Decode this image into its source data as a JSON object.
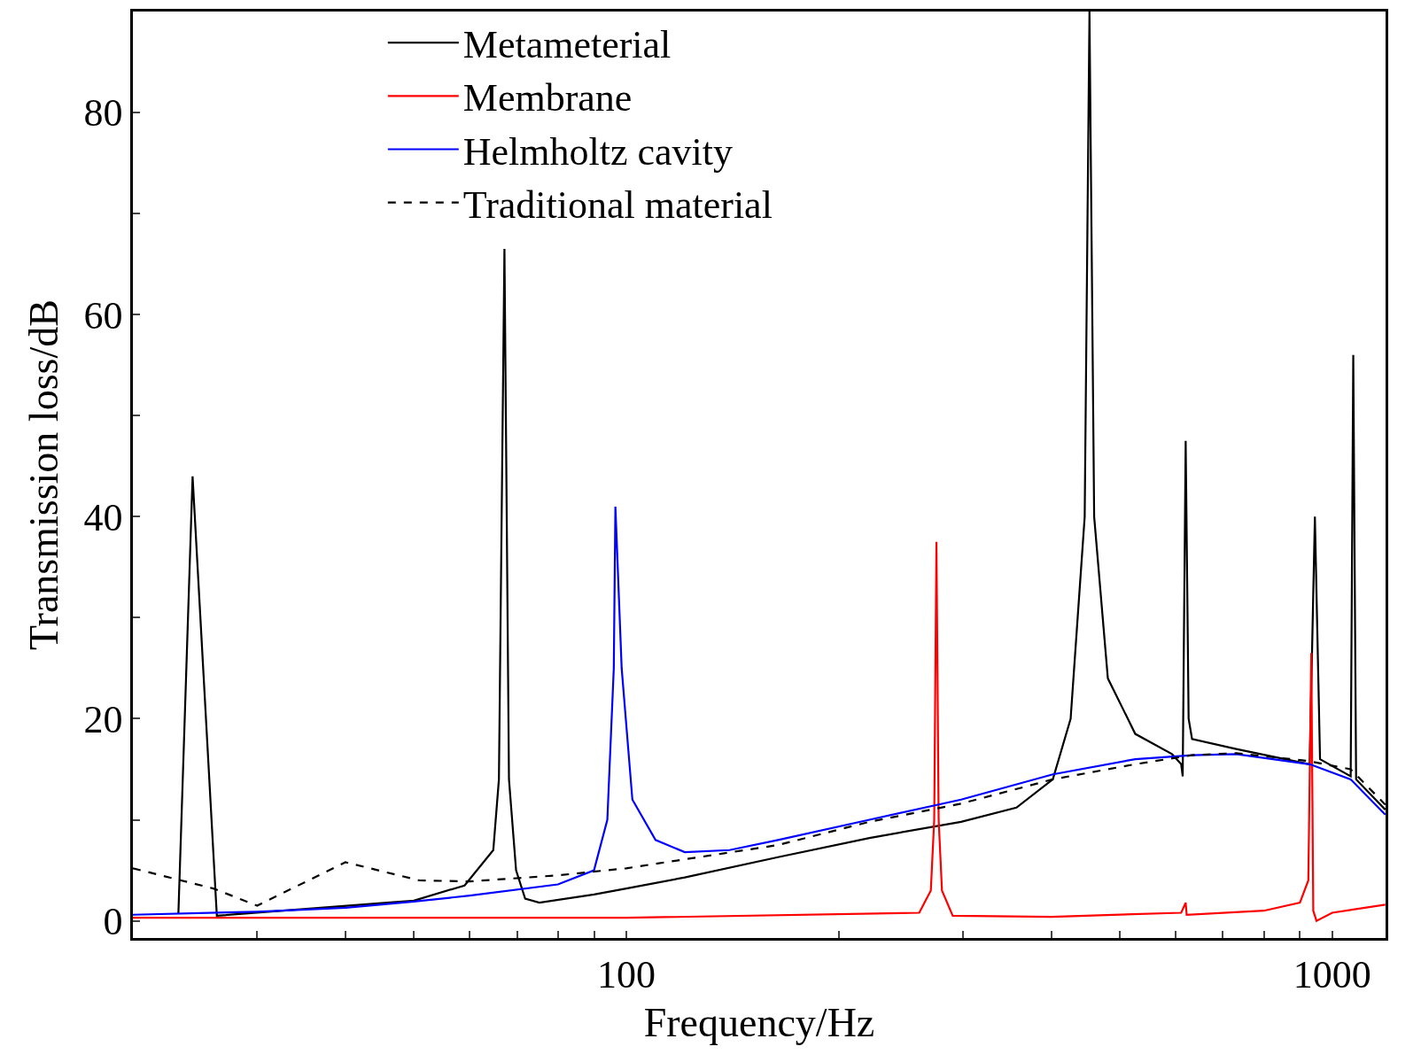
{
  "chart_data": {
    "type": "line",
    "xlabel": "Frequency/Hz",
    "ylabel": "Transmission loss/dB",
    "log": "x",
    "xlim": [
      20,
      1190
    ],
    "ylim": [
      -1.7,
      90
    ],
    "xticks": [
      {
        "value": 20,
        "label": null
      },
      {
        "value": 30,
        "label": null
      },
      {
        "value": 40,
        "label": null
      },
      {
        "value": 50,
        "label": null
      },
      {
        "value": 60,
        "label": null
      },
      {
        "value": 70,
        "label": null
      },
      {
        "value": 80,
        "label": null
      },
      {
        "value": 90,
        "label": null
      },
      100,
      {
        "value": 200,
        "label": null
      },
      {
        "value": 300,
        "label": null
      },
      {
        "value": 400,
        "label": null
      },
      {
        "value": 500,
        "label": null
      },
      {
        "value": 600,
        "label": null
      },
      {
        "value": 700,
        "label": null
      },
      {
        "value": 800,
        "label": null
      },
      {
        "value": 900,
        "label": null
      },
      1000
    ],
    "yticks": [
      0,
      {
        "value": 10,
        "label": null
      },
      20,
      {
        "value": 30,
        "label": null
      },
      40,
      {
        "value": 50,
        "label": null
      },
      60,
      {
        "value": 70,
        "label": null
      },
      80
    ],
    "legend": "top",
    "marker": "none",
    "series": [
      {
        "name": "Metameterial",
        "color": "#000000",
        "line_style": "solid",
        "x": [
          23.2,
          24.3,
          26.3,
          50,
          59,
          64.8,
          66,
          67.2,
          68.2,
          69.8,
          71.9,
          75.3,
          90,
          100,
          121,
          164,
          221,
          298,
          357,
          402,
          426,
          446,
          453,
          460,
          481,
          526,
          593,
          611,
          614,
          620,
          626,
          633,
          731,
          929,
          945,
          961,
          1062,
          1071,
          1081,
          1189
        ],
        "values": [
          0.7,
          44,
          0.5,
          2,
          3.5,
          7,
          14,
          66.5,
          14,
          5,
          2.2,
          1.8,
          2.6,
          3.2,
          4.3,
          6.3,
          8.2,
          9.8,
          11.2,
          14,
          20,
          40,
          90,
          40,
          24,
          18.5,
          16.5,
          15.5,
          14.3,
          47.5,
          20,
          18,
          17,
          15.5,
          40,
          16,
          14.3,
          56,
          14,
          11
        ]
      },
      {
        "name": "Membrane",
        "color": "#ff0000",
        "line_style": "solid",
        "x": [
          20,
          100,
          260,
          270,
          273,
          275,
          277,
          280,
          290,
          400,
          611,
          620,
          622,
          800,
          900,
          925,
          934,
          940,
          950,
          1000,
          1189
        ],
        "values": [
          0.3,
          0.3,
          0.8,
          3,
          10,
          37.5,
          10,
          3,
          0.5,
          0.4,
          0.8,
          1.8,
          0.6,
          1,
          1.8,
          4,
          26.5,
          1,
          0,
          0.8,
          1.6
        ]
      },
      {
        "name": "Helmholtz cavity",
        "color": "#0000ff",
        "line_style": "solid",
        "x": [
          20,
          30,
          40,
          50,
          60,
          80,
          90,
          94,
          96,
          96.5,
          98.5,
          102,
          110,
          121,
          140,
          164,
          221,
          298,
          402,
          526,
          633,
          731,
          929,
          1062,
          1189
        ],
        "values": [
          0.6,
          0.9,
          1.3,
          1.9,
          2.5,
          3.6,
          5,
          10,
          25,
          41,
          25,
          12,
          8,
          6.8,
          7,
          8,
          10,
          12,
          14.5,
          16,
          16.4,
          16.5,
          15.5,
          14,
          10.5
        ]
      },
      {
        "name": "Traditional material",
        "color": "#000000",
        "line_style": "dashed",
        "x": [
          20,
          26,
          30,
          40,
          50.9,
          60,
          80,
          100,
          164,
          221,
          298,
          402,
          526,
          633,
          731,
          929,
          1062,
          1189
        ],
        "values": [
          5.2,
          3.2,
          1.5,
          5.8,
          4,
          3.9,
          4.5,
          5.2,
          7.5,
          9.8,
          11.6,
          14,
          15.5,
          16.4,
          16.6,
          15.8,
          15,
          11.5
        ]
      }
    ]
  }
}
